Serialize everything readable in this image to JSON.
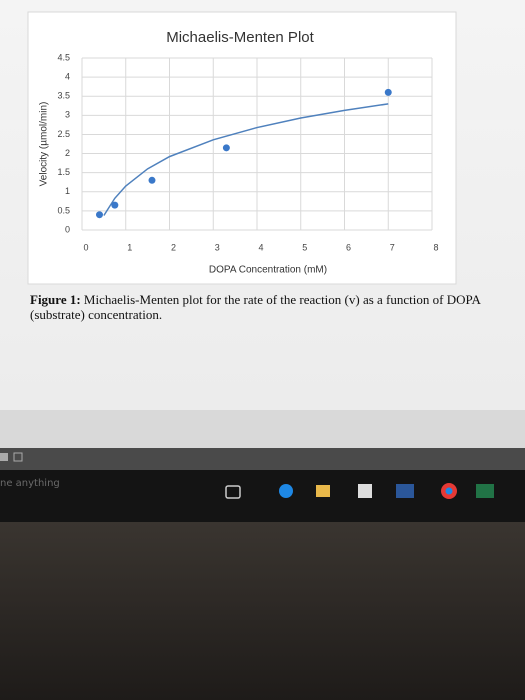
{
  "chart_data": {
    "type": "scatter",
    "title": "Michaelis-Menten Plot",
    "x_label": "DOPA Concentration (mM)",
    "y_label": "Velocity (µmol/min)",
    "x": [
      0.4,
      0.75,
      1.6,
      3.3,
      7.0
    ],
    "values": [
      0.4,
      0.65,
      1.3,
      2.15,
      3.6
    ],
    "color": "#3a78c9",
    "trendline": {
      "x": [
        0.5,
        0.75,
        1,
        1.5,
        2,
        3,
        4,
        5,
        6,
        7
      ],
      "values": [
        0.38,
        0.83,
        1.15,
        1.6,
        1.92,
        2.36,
        2.68,
        2.93,
        3.13,
        3.3
      ],
      "color": "#4f81bd"
    },
    "xlim": [
      0,
      8
    ],
    "ylim": [
      0,
      4.5
    ],
    "xticks": [
      0,
      1,
      2,
      3,
      4,
      5,
      6,
      7,
      8
    ],
    "yticks": [
      0,
      0.5,
      1,
      1.5,
      2,
      2.5,
      3,
      3.5,
      4,
      4.5
    ],
    "grid": true
  },
  "caption": {
    "label": "Figure 1:",
    "text": "Michaelis-Menten plot for the rate of the reaction (v) as a function of DOPA (substrate) concentration."
  },
  "taskbar": {
    "search": "ne anything"
  }
}
